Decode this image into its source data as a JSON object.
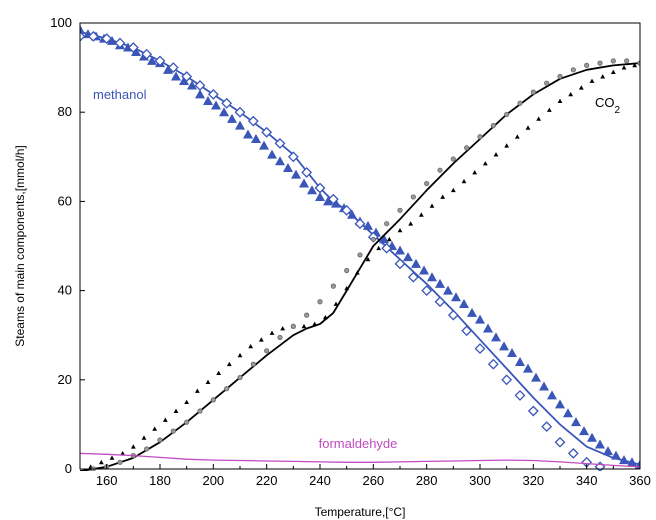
{
  "chart_data": {
    "type": "line",
    "xlabel": "Temperature,[°C]",
    "ylabel": "Steams of main components,[mmol/h]",
    "xlim": [
      150,
      360
    ],
    "ylim": [
      0,
      100
    ],
    "xticks": [
      160,
      180,
      200,
      220,
      240,
      260,
      280,
      300,
      320,
      340,
      360
    ],
    "yticks": [
      0,
      20,
      40,
      60,
      80,
      100
    ],
    "colors": {
      "methanol": "#3a56b8",
      "co2_line": "#000000",
      "co2_dots": "#666666",
      "formaldehyde": "#c04cc0"
    },
    "labels": {
      "methanol": "methanol",
      "co2_main": "CO",
      "co2_sub": "2",
      "formaldehyde": "formaldehyde"
    },
    "series": [
      {
        "key": "methanol-model",
        "style": "line",
        "x": [
          150,
          160,
          170,
          180,
          190,
          200,
          210,
          220,
          230,
          240,
          245,
          250,
          260,
          270,
          280,
          290,
          300,
          310,
          320,
          330,
          340,
          350,
          360
        ],
        "y": [
          98,
          96.5,
          94.5,
          91.5,
          88,
          84,
          80,
          75.5,
          70.5,
          63,
          60,
          58,
          52.5,
          47,
          41.5,
          35.5,
          29,
          22.5,
          16,
          10,
          5,
          2.5,
          1
        ]
      },
      {
        "key": "methanol-exp-triangles",
        "style": "triangle",
        "x": [
          150,
          153,
          156,
          159,
          162,
          165,
          168,
          171,
          174,
          177,
          180,
          183,
          186,
          189,
          192,
          195,
          198,
          201,
          204,
          207,
          210,
          213,
          216,
          219,
          222,
          225,
          228,
          231,
          234,
          237,
          240,
          243,
          246,
          249,
          252,
          255,
          258,
          261,
          264,
          267,
          270,
          273,
          276,
          279,
          282,
          285,
          288,
          291,
          294,
          297,
          300,
          303,
          306,
          309,
          312,
          315,
          318,
          321,
          324,
          327,
          330,
          333,
          336,
          339,
          342,
          345,
          348,
          351,
          354,
          357,
          360
        ],
        "y": [
          98.5,
          97.5,
          97,
          96.5,
          96,
          95,
          94.5,
          93.5,
          92.5,
          91.5,
          91,
          89.5,
          88,
          87,
          86,
          84,
          82.5,
          81.5,
          80,
          78.5,
          77,
          75,
          74,
          72.5,
          70.5,
          69,
          67.5,
          66,
          64,
          62.5,
          61,
          60,
          59.5,
          58.5,
          57,
          55.5,
          54.5,
          53,
          51.5,
          50,
          49,
          47.5,
          46,
          44.5,
          43,
          41.5,
          40,
          38.5,
          37,
          35,
          33.5,
          31.5,
          29.5,
          27.5,
          26,
          24,
          22.5,
          20.5,
          18.5,
          16.5,
          14.5,
          12.5,
          10.5,
          8.5,
          7,
          5.5,
          4,
          3,
          2,
          1.5,
          1
        ]
      },
      {
        "key": "methanol-exp-diamonds",
        "style": "diamond",
        "x": [
          150,
          155,
          160,
          165,
          170,
          175,
          180,
          185,
          190,
          195,
          200,
          205,
          210,
          215,
          220,
          225,
          230,
          235,
          240,
          245,
          250,
          255,
          260,
          265,
          270,
          275,
          280,
          285,
          290,
          295,
          300,
          305,
          310,
          315,
          320,
          325,
          330,
          335,
          340,
          345
        ],
        "y": [
          97,
          97,
          96.5,
          95.5,
          94.5,
          93,
          91.5,
          90,
          88,
          86,
          84,
          82,
          80,
          78,
          75.5,
          73,
          70,
          66.5,
          63,
          60.5,
          58,
          55,
          52,
          49.5,
          46,
          43,
          40,
          37.5,
          34.5,
          31,
          27,
          23.5,
          20,
          16.5,
          13,
          9.5,
          6,
          3.5,
          1.5,
          0.5
        ]
      },
      {
        "key": "co2-model",
        "style": "line",
        "x": [
          150,
          160,
          170,
          180,
          190,
          200,
          210,
          220,
          230,
          235,
          240,
          245,
          250,
          255,
          260,
          270,
          280,
          290,
          300,
          310,
          320,
          330,
          340,
          350,
          360
        ],
        "y": [
          -0.5,
          0.5,
          2.5,
          6,
          10.5,
          15.5,
          20.5,
          25.5,
          30,
          31.5,
          32.5,
          35,
          40,
          45,
          50,
          56,
          62.5,
          68.5,
          74,
          79.5,
          84,
          87.5,
          89.5,
          90.5,
          91
        ]
      },
      {
        "key": "co2-exp-triangles",
        "style": "smalltriangle",
        "x": [
          150,
          154,
          158,
          162,
          166,
          170,
          174,
          178,
          182,
          186,
          190,
          194,
          198,
          202,
          206,
          210,
          214,
          218,
          222,
          226,
          230,
          234,
          238,
          242,
          246,
          250,
          254,
          258,
          262,
          266,
          270,
          274,
          278,
          282,
          286,
          290,
          294,
          298,
          302,
          306,
          310,
          314,
          318,
          322,
          326,
          330,
          334,
          338,
          342,
          346,
          350,
          354,
          358
        ],
        "y": [
          -0.5,
          0.5,
          1.5,
          2.5,
          3.5,
          5,
          7,
          9,
          11,
          13,
          15,
          17.5,
          19.5,
          21.5,
          23.5,
          25.5,
          27.5,
          29,
          30.5,
          31.5,
          32,
          32,
          32.5,
          34,
          37,
          40.5,
          44,
          47,
          49.5,
          51.5,
          53.5,
          55,
          57,
          59,
          61,
          62.5,
          64.5,
          66.5,
          68.5,
          70.5,
          72.5,
          74.5,
          76.5,
          78.5,
          80.5,
          82.5,
          84,
          85.5,
          87,
          88,
          89,
          90,
          90.5
        ]
      },
      {
        "key": "co2-exp-dots",
        "style": "dot",
        "x": [
          155,
          160,
          165,
          170,
          175,
          180,
          185,
          190,
          195,
          200,
          205,
          210,
          215,
          220,
          225,
          230,
          235,
          240,
          245,
          250,
          255,
          260,
          265,
          270,
          275,
          280,
          285,
          290,
          295,
          300,
          305,
          310,
          315,
          320,
          325,
          330,
          335,
          340,
          345,
          350,
          355,
          360
        ],
        "y": [
          0,
          0.5,
          1.5,
          3,
          4.5,
          6.5,
          8.5,
          10.5,
          13,
          15.5,
          18,
          20.5,
          23.5,
          26.5,
          29.5,
          32,
          34.5,
          37.5,
          41,
          44.5,
          48,
          51.5,
          55,
          58,
          61,
          64,
          67,
          69.5,
          72,
          74.5,
          77,
          79.5,
          82,
          84.5,
          86.5,
          88,
          89.5,
          90.5,
          91,
          91.5,
          91.5,
          91
        ]
      },
      {
        "key": "formaldehyde-model",
        "style": "line",
        "x": [
          150,
          160,
          170,
          180,
          190,
          200,
          210,
          220,
          230,
          240,
          250,
          260,
          270,
          280,
          290,
          300,
          310,
          320,
          330,
          340,
          350,
          360
        ],
        "y": [
          3.5,
          3.3,
          3,
          2.6,
          2.2,
          2,
          1.9,
          1.8,
          1.7,
          1.6,
          1.5,
          1.5,
          1.6,
          1.7,
          1.8,
          1.9,
          2,
          1.9,
          1.6,
          1.2,
          0.8,
          0.5
        ]
      }
    ]
  }
}
